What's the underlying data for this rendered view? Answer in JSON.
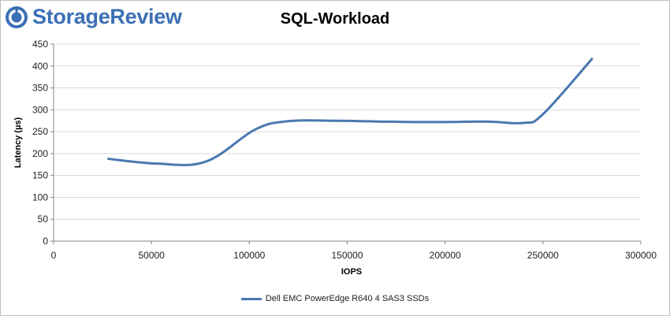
{
  "brand": {
    "name": "StorageReview",
    "logo_color": "#3a6fb5"
  },
  "chart_data": {
    "type": "line",
    "title": "SQL-Workload",
    "xlabel": "IOPS",
    "ylabel": "Latency (µs)",
    "xlim": [
      0,
      300000
    ],
    "ylim": [
      0,
      450
    ],
    "xticks": [
      0,
      50000,
      100000,
      150000,
      200000,
      250000,
      300000
    ],
    "yticks": [
      0,
      50,
      100,
      150,
      200,
      250,
      300,
      350,
      400,
      450
    ],
    "grid": true,
    "legend_position": "bottom",
    "series": [
      {
        "name": "Dell EMC PowerEdge R640 4 SAS3 SSDs",
        "color": "#4a78b0",
        "x": [
          28000,
          53000,
          78000,
          103000,
          120000,
          145000,
          170000,
          195000,
          222000,
          240000,
          250000,
          275000
        ],
        "y": [
          188,
          177,
          182,
          255,
          274,
          275,
          273,
          272,
          273,
          270,
          290,
          416
        ]
      }
    ]
  }
}
